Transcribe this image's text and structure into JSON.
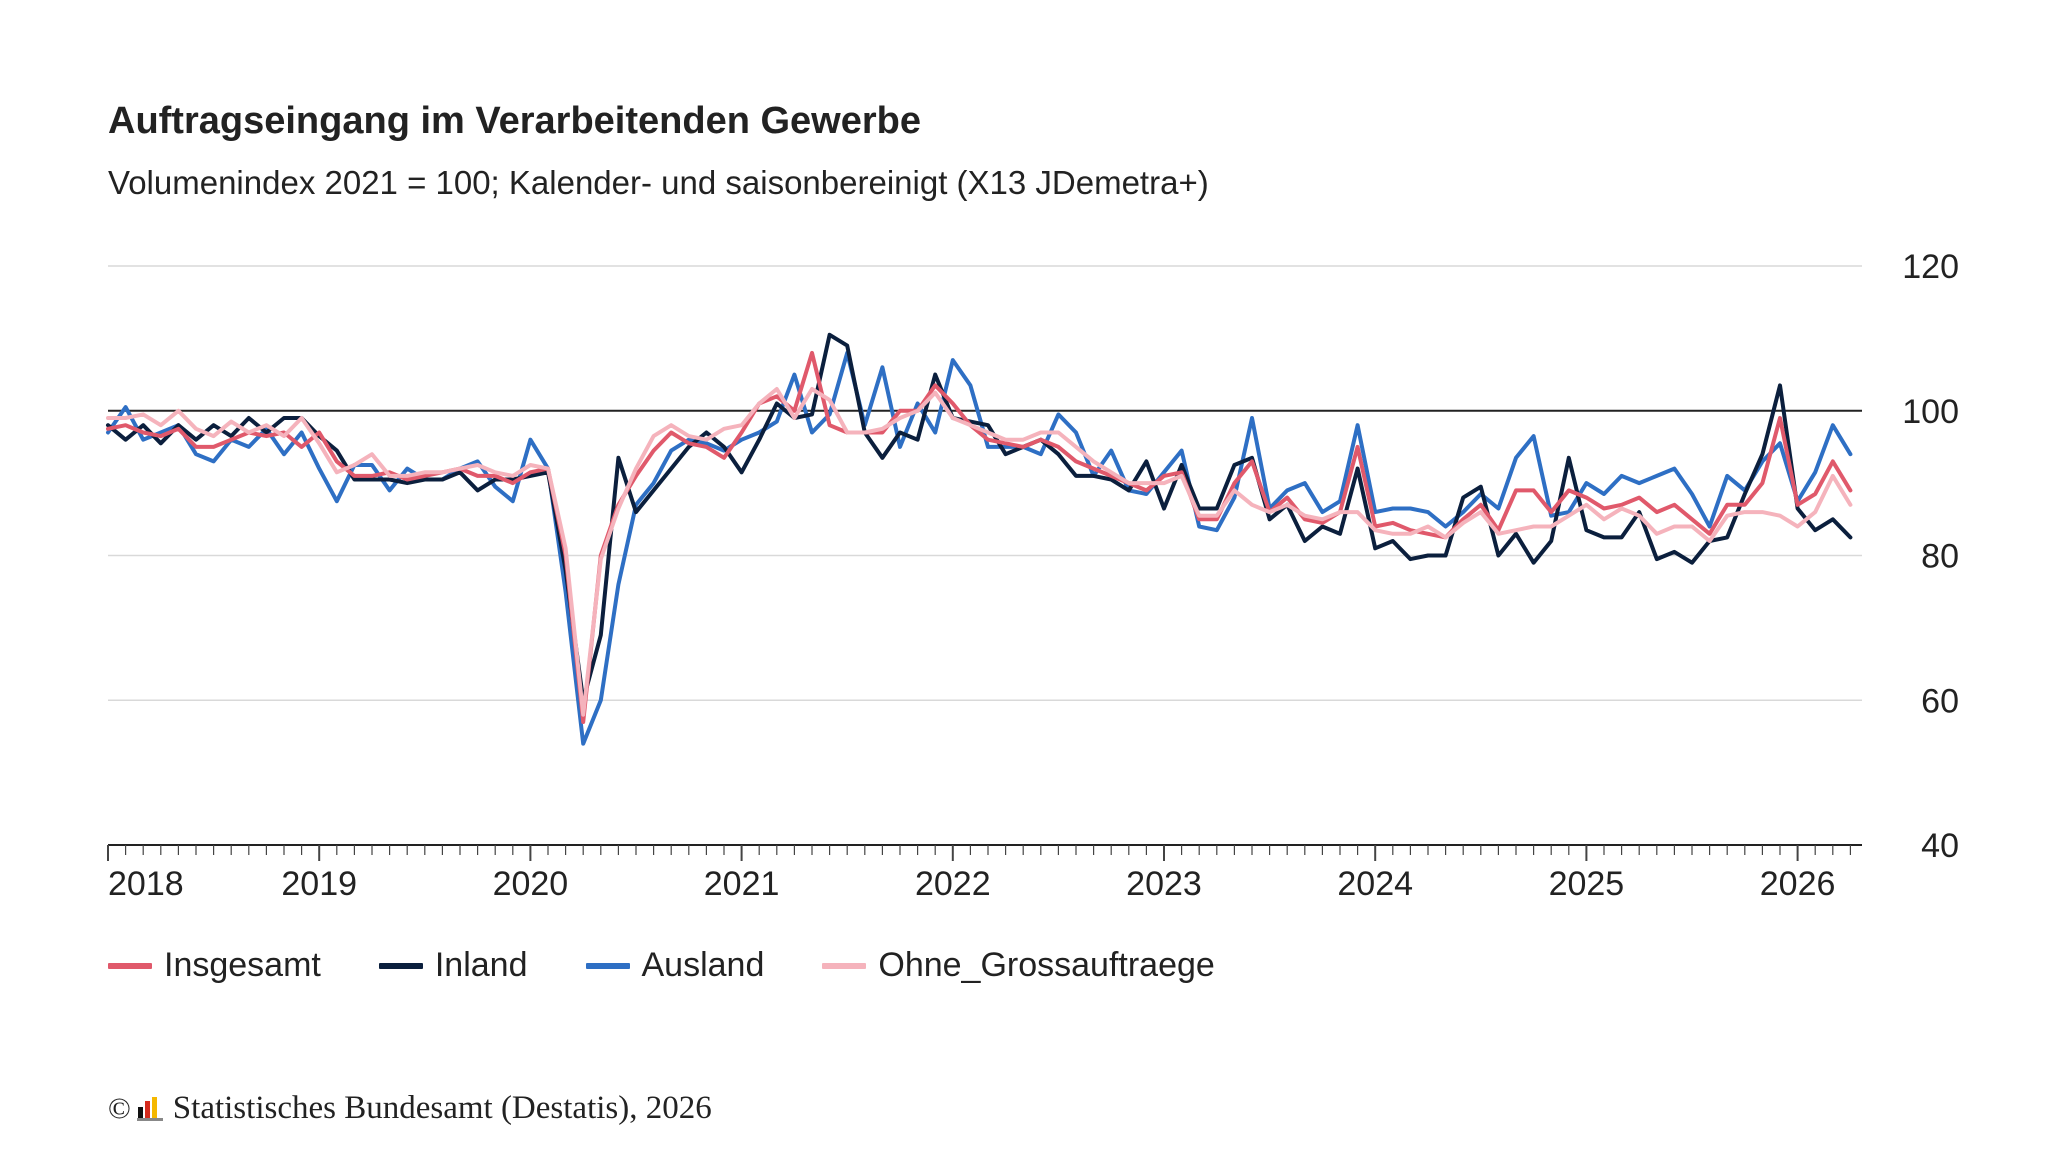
{
  "title": "Auftragseingang im Verarbeitenden Gewerbe",
  "subtitle": "Volumenindex 2021 = 100; Kalender- und saisonbereinigt (X13 JDemetra+)",
  "footer": {
    "copyright": "©",
    "text": "Statistisches Bundesamt (Destatis), 2026"
  },
  "chart_data": {
    "type": "line",
    "frequency": "monthly",
    "x_start": "2018-01",
    "x_end": "2026-03",
    "x_tick_labels": [
      "2018",
      "2019",
      "2020",
      "2021",
      "2022",
      "2023",
      "2024",
      "2025",
      "2026"
    ],
    "y_ticks": [
      40,
      60,
      80,
      100,
      120
    ],
    "ylim": [
      40,
      120
    ],
    "reference_line": 100,
    "grid": true,
    "y_axis_position": "right",
    "legend_position": "bottom-left",
    "series": [
      {
        "name": "Insgesamt",
        "color": "#e0596b",
        "values": [
          97.5,
          98,
          97,
          96.5,
          97.5,
          95,
          95,
          96,
          97,
          96.5,
          97,
          95,
          97,
          93,
          91,
          91,
          91.5,
          90.5,
          91,
          91.5,
          92,
          91,
          91,
          90,
          91.5,
          92,
          80,
          57,
          80,
          87,
          91,
          94.5,
          97,
          95.5,
          95,
          93.5,
          97,
          101,
          102,
          100,
          108,
          98,
          97,
          97,
          97,
          100,
          100,
          103.5,
          101,
          98,
          96,
          95.5,
          95,
          96,
          95,
          93,
          92,
          91,
          90,
          89,
          91,
          91.5,
          85,
          85,
          90,
          93,
          86,
          88,
          85,
          84.5,
          86,
          95,
          84,
          84.5,
          83.5,
          83,
          82.5,
          85,
          87,
          83.5,
          89,
          89,
          86,
          89,
          88,
          86.5,
          87,
          88,
          86,
          87,
          85,
          83,
          87,
          87,
          90,
          99,
          87,
          88.5,
          93,
          89
        ]
      },
      {
        "name": "Inland",
        "color": "#0b1f3d",
        "values": [
          98,
          96,
          98,
          95.5,
          98,
          96,
          98,
          96.5,
          99,
          97,
          99,
          99,
          96.5,
          94.5,
          90.5,
          90.5,
          90.5,
          90,
          90.5,
          90.5,
          91.5,
          89,
          90.5,
          90.5,
          91,
          91.5,
          78,
          60,
          69,
          93.5,
          86,
          89,
          92,
          95,
          97,
          95,
          91.5,
          96,
          101,
          99,
          99.5,
          110.5,
          109,
          97,
          93.5,
          97,
          96,
          105,
          99,
          98.5,
          98,
          94,
          95,
          96,
          94,
          91,
          91,
          90.5,
          89,
          93,
          86.5,
          92.5,
          86.5,
          86.5,
          92.5,
          93.5,
          85,
          87,
          82,
          84,
          83,
          92,
          81,
          82,
          79.5,
          80,
          80,
          88,
          89.5,
          80,
          83,
          79,
          82,
          93.5,
          83.5,
          82.5,
          82.5,
          86,
          79.5,
          80.5,
          79,
          82,
          82.5,
          88.5,
          94,
          103.5,
          86.5,
          83.5,
          85,
          82.5
        ]
      },
      {
        "name": "Ausland",
        "color": "#2e6fc4",
        "values": [
          97,
          100.5,
          96,
          97,
          98,
          94,
          93,
          96,
          95,
          97.5,
          94,
          97,
          92,
          87.5,
          92.5,
          92.5,
          89,
          92,
          90.5,
          90.5,
          92,
          93,
          89.5,
          87.5,
          96,
          92,
          75,
          54,
          60,
          76,
          87,
          90,
          94.5,
          96,
          95.5,
          94.5,
          96,
          97,
          98.5,
          105,
          97,
          99.5,
          108,
          98,
          106,
          95,
          101,
          97,
          107,
          103.5,
          95,
          95,
          95,
          94,
          99.5,
          97,
          91,
          94.5,
          89,
          88.5,
          91.5,
          94.5,
          84,
          83.5,
          88,
          99,
          86.5,
          89,
          90,
          86,
          87.5,
          98,
          86,
          86.5,
          86.5,
          86,
          84,
          86,
          88.5,
          86.5,
          93.5,
          96.5,
          85.5,
          86,
          90,
          88.5,
          91,
          90,
          91,
          92,
          88.5,
          84,
          91,
          89,
          93,
          95.5,
          87.5,
          91.5,
          98,
          94
        ]
      },
      {
        "name": "Ohne_Grossauftraege",
        "color": "#f5b3bc",
        "values": [
          99,
          99,
          99.5,
          98,
          100,
          97.5,
          96.5,
          98.5,
          97,
          98,
          96.5,
          99,
          95.5,
          91.5,
          92.5,
          94,
          91,
          91,
          91.5,
          91.5,
          92,
          92.5,
          91.5,
          91,
          92.5,
          92,
          81,
          58,
          79.5,
          86.5,
          92,
          96.5,
          98,
          96.5,
          96,
          97.5,
          98,
          101,
          103,
          99,
          103,
          101.5,
          97,
          97,
          97.5,
          99,
          100,
          102.5,
          99,
          98,
          97,
          96,
          96,
          97,
          97,
          95,
          93,
          91.5,
          90,
          90,
          90,
          91,
          85.5,
          85.5,
          89,
          87,
          86,
          87,
          85.5,
          85,
          86,
          86,
          83.5,
          83,
          83,
          84,
          82.5,
          84.5,
          86,
          83,
          83.5,
          84,
          84,
          85.5,
          87,
          85,
          86.5,
          85.5,
          83,
          84,
          84,
          82,
          85.5,
          86,
          86,
          85.5,
          84,
          86,
          91,
          87
        ]
      }
    ]
  }
}
